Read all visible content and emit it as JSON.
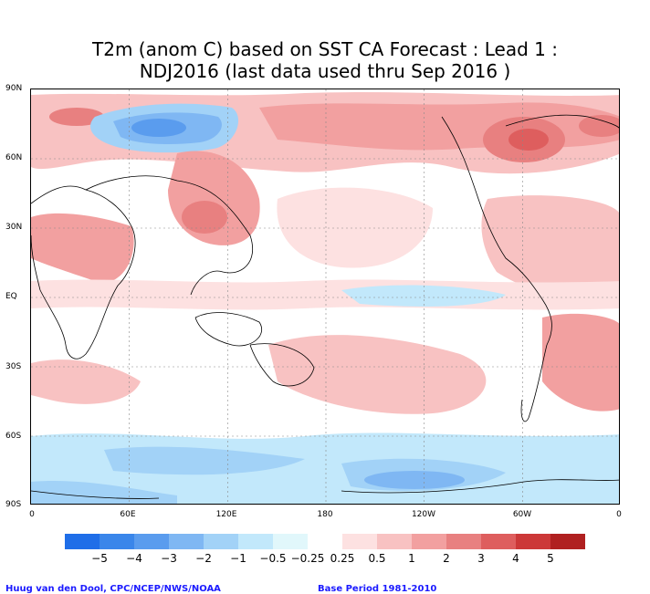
{
  "title": {
    "line1": "T2m (anom C) based on SST CA Forecast : Lead 1 :",
    "line2": "NDJ2016 (last data used thru Sep 2016 )"
  },
  "lat_labels": [
    "90N",
    "60N",
    "30N",
    "EQ",
    "30S",
    "60S",
    "90S"
  ],
  "lon_labels": [
    "0",
    "60E",
    "120E",
    "180",
    "120W",
    "60W",
    "0"
  ],
  "legend": {
    "labels": [
      "−5",
      "−4",
      "−3",
      "−2",
      "−1",
      "−0.5",
      "−0.25",
      "0.25",
      "0.5",
      "1",
      "2",
      "3",
      "4",
      "5"
    ],
    "colors": [
      "#1f6ee8",
      "#3a86ea",
      "#5a9cee",
      "#7fb7f3",
      "#a2d2f7",
      "#c2e8fb",
      "#e1f7fb",
      "#ffffff",
      "#fde1e1",
      "#f8c2c2",
      "#f2a0a0",
      "#e88080",
      "#de5e5e",
      "#cc3838",
      "#b02020"
    ]
  },
  "credit": {
    "left": "Huug van den Dool, CPC/NCEP/NWS/NOAA",
    "right": "Base Period 1981-2010"
  }
}
